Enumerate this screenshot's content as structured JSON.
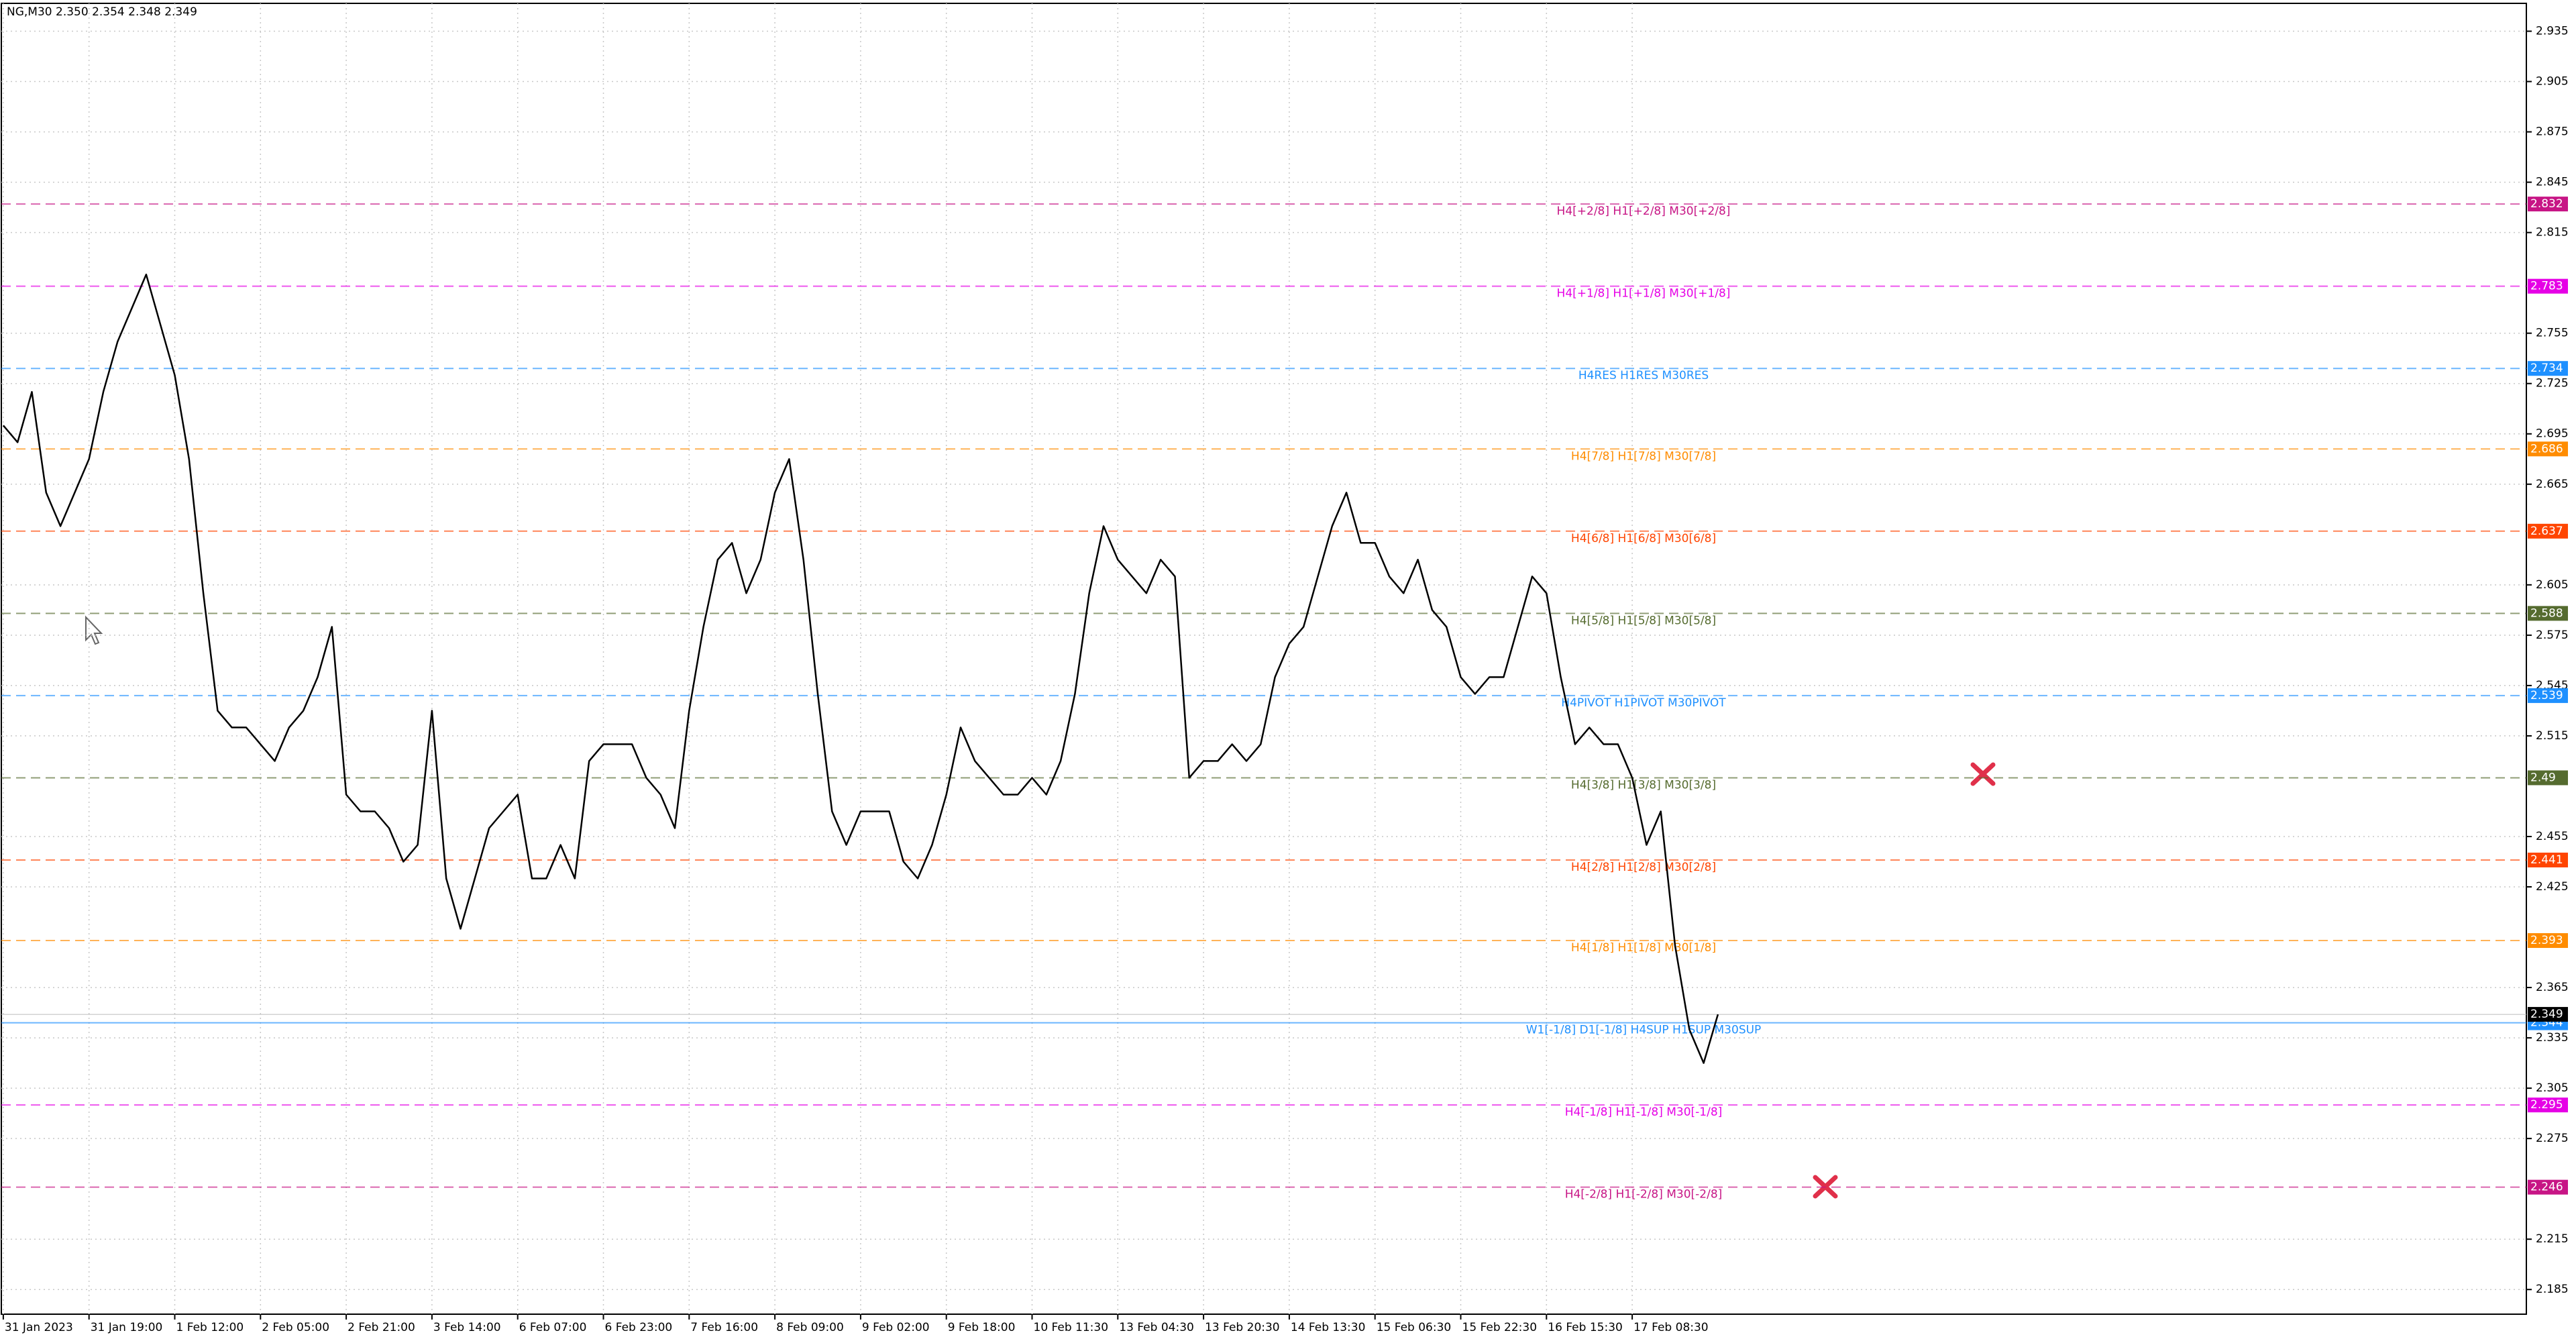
{
  "chart_data": {
    "type": "line",
    "title": "NG,M30  2.350 2.354 2.348 2.349",
    "color": "#000000",
    "categories": [
      "31 Jan 2023",
      null,
      null,
      null,
      null,
      null,
      "31 Jan 19:00",
      null,
      null,
      null,
      null,
      null,
      "1 Feb 12:00",
      null,
      null,
      null,
      null,
      null,
      "2 Feb 05:00",
      null,
      null,
      null,
      null,
      null,
      "2 Feb 21:00",
      null,
      null,
      null,
      null,
      null,
      "3 Feb 14:00",
      null,
      null,
      null,
      null,
      null,
      "6 Feb 07:00",
      null,
      null,
      null,
      null,
      null,
      "6 Feb 23:00",
      null,
      null,
      null,
      null,
      null,
      "7 Feb 16:00",
      null,
      null,
      null,
      null,
      null,
      "8 Feb 09:00",
      null,
      null,
      null,
      null,
      null,
      "9 Feb 02:00",
      null,
      null,
      null,
      null,
      null,
      "9 Feb 18:00",
      null,
      null,
      null,
      null,
      null,
      "10 Feb 11:30",
      null,
      null,
      null,
      null,
      null,
      "13 Feb 04:30",
      null,
      null,
      null,
      null,
      null,
      "13 Feb 20:30",
      null,
      null,
      null,
      null,
      null,
      "14 Feb 13:30",
      null,
      null,
      null,
      null,
      null,
      "15 Feb 06:30",
      null,
      null,
      null,
      null,
      null,
      "15 Feb 22:30",
      null,
      null,
      null,
      null,
      null,
      "16 Feb 15:30",
      null,
      null,
      null,
      null,
      null,
      "17 Feb 08:30",
      null,
      null,
      null,
      null,
      null,
      null
    ],
    "values": [
      2.7,
      2.69,
      2.72,
      2.66,
      2.64,
      2.66,
      2.68,
      2.72,
      2.75,
      2.77,
      2.79,
      2.76,
      2.73,
      2.68,
      2.6,
      2.53,
      2.52,
      2.52,
      2.51,
      2.5,
      2.52,
      2.53,
      2.55,
      2.58,
      2.48,
      2.47,
      2.47,
      2.46,
      2.44,
      2.45,
      2.53,
      2.43,
      2.4,
      2.43,
      2.46,
      2.47,
      2.48,
      2.43,
      2.43,
      2.45,
      2.43,
      2.5,
      2.51,
      2.51,
      2.51,
      2.49,
      2.48,
      2.46,
      2.53,
      2.58,
      2.62,
      2.63,
      2.6,
      2.62,
      2.66,
      2.68,
      2.62,
      2.54,
      2.47,
      2.45,
      2.47,
      2.47,
      2.47,
      2.44,
      2.43,
      2.45,
      2.48,
      2.52,
      2.5,
      2.49,
      2.48,
      2.48,
      2.49,
      2.48,
      2.5,
      2.54,
      2.6,
      2.64,
      2.62,
      2.61,
      2.6,
      2.62,
      2.61,
      2.49,
      2.5,
      2.5,
      2.51,
      2.5,
      2.51,
      2.55,
      2.57,
      2.58,
      2.61,
      2.64,
      2.66,
      2.63,
      2.63,
      2.61,
      2.6,
      2.62,
      2.59,
      2.58,
      2.55,
      2.54,
      2.55,
      2.55,
      2.58,
      2.61,
      2.6,
      2.55,
      2.51,
      2.52,
      2.51,
      2.51,
      2.49,
      2.45,
      2.47,
      2.39,
      2.34,
      2.32,
      2.349
    ],
    "ylim": [
      2.1703,
      2.9516
    ],
    "yticks": [
      2.935,
      2.905,
      2.875,
      2.845,
      2.815,
      2.755,
      2.725,
      2.695,
      2.665,
      2.605,
      2.575,
      2.545,
      2.515,
      2.455,
      2.425,
      2.365,
      2.335,
      2.305,
      2.275,
      2.215,
      2.185
    ],
    "grid": true,
    "bid": 2.349,
    "levels": [
      {
        "value": 2.832,
        "label": "H4[+2/8] H1[+2/8] M30[+2/8]",
        "color": "#c71585",
        "style": "dash"
      },
      {
        "value": 2.783,
        "label": "H4[+1/8] H1[+1/8] M30[+1/8]",
        "color": "#e600e6",
        "style": "dash"
      },
      {
        "value": 2.734,
        "label": "H4RES H1RES M30RES",
        "color": "#1e90ff",
        "style": "dash"
      },
      {
        "value": 2.686,
        "label": "H4[7/8] H1[7/8] M30[7/8]",
        "color": "#ff8c00",
        "style": "dash"
      },
      {
        "value": 2.637,
        "label": "H4[6/8] H1[6/8] M30[6/8]",
        "color": "#ff4500",
        "style": "dash"
      },
      {
        "value": 2.588,
        "label": "H4[5/8] H1[5/8] M30[5/8]",
        "color": "#556b2f",
        "style": "dash"
      },
      {
        "value": 2.539,
        "label": "H4PIVOT H1PIVOT M30PIVOT",
        "color": "#1e90ff",
        "style": "dash"
      },
      {
        "value": 2.49,
        "label": "H4[3/8] H1[3/8] M30[3/8]",
        "color": "#556b2f",
        "style": "dash"
      },
      {
        "value": 2.441,
        "label": "H4[2/8] H1[2/8] M30[2/8]",
        "color": "#ff4500",
        "style": "dash"
      },
      {
        "value": 2.393,
        "label": "H4[1/8] H1[1/8] M30[1/8]",
        "color": "#ff8c00",
        "style": "dash"
      },
      {
        "value": 2.344,
        "label": "W1[-1/8] D1[-1/8] H4SUP H1SUP M30SUP",
        "color": "#1e90ff",
        "style": "solid"
      },
      {
        "value": 2.295,
        "label": "H4[-1/8] H1[-1/8] M30[-1/8]",
        "color": "#e600e6",
        "style": "dash"
      },
      {
        "value": 2.246,
        "label": "H4[-2/8] H1[-2/8] M30[-2/8]",
        "color": "#c71585",
        "style": "dash"
      }
    ]
  }
}
